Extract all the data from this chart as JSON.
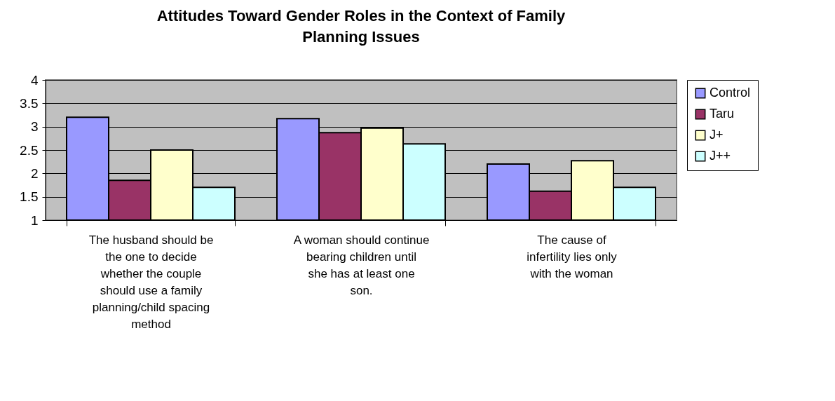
{
  "chart_data": {
    "type": "bar",
    "title": "Attitudes Toward Gender Roles in the Context of Family Planning Issues",
    "categories": [
      "The husband should be the one to decide whether the couple should use a family planning/child spacing method",
      "A woman should continue bearing children until she has at least one son.",
      "The cause of infertility lies only with the woman"
    ],
    "series": [
      {
        "name": "Control",
        "color": "#9999ff",
        "values": [
          3.2,
          3.17,
          2.2
        ]
      },
      {
        "name": "Taru",
        "color": "#993366",
        "values": [
          1.85,
          2.87,
          1.62
        ]
      },
      {
        "name": "J+",
        "color": "#ffffcc",
        "values": [
          2.5,
          2.97,
          2.27
        ]
      },
      {
        "name": "J++",
        "color": "#ccffff",
        "values": [
          1.7,
          2.63,
          1.7
        ]
      }
    ],
    "ylim": [
      1,
      4
    ],
    "yticks": [
      1,
      1.5,
      2,
      2.5,
      3,
      3.5,
      4
    ],
    "grid": "y",
    "legend": "right"
  }
}
